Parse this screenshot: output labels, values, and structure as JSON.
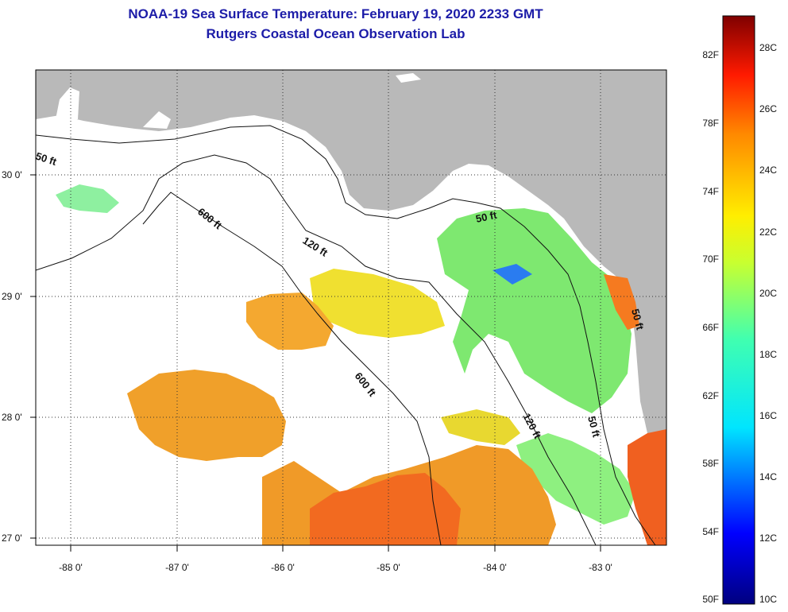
{
  "title": "NOAA-19 Sea Surface Temperature:  February 19, 2020 2233 GMT",
  "subtitle": "Rutgers Coastal Ocean Observation Lab",
  "axes": {
    "x_ticks": [
      "-88 0'",
      "-87 0'",
      "-86 0'",
      "-85 0'",
      "-84 0'",
      "-83 0'"
    ],
    "y_ticks": [
      "30 0'",
      "29 0'",
      "28 0'",
      "27 0'"
    ]
  },
  "depth_contours": [
    "50 ft",
    "600 ft",
    "120 ft",
    "50 ft",
    "600 ft",
    "120 ft",
    "50 ft",
    "50 ft"
  ],
  "colorbar": {
    "fahrenheit": [
      "82F",
      "78F",
      "74F",
      "70F",
      "66F",
      "62F",
      "58F",
      "54F",
      "50F"
    ],
    "celsius": [
      "28C",
      "26C",
      "24C",
      "22C",
      "20C",
      "18C",
      "16C",
      "14C",
      "12C",
      "10C"
    ]
  },
  "colors": {
    "land": "#b9b9b9",
    "cloud": "#ffffff",
    "title": "#1c1ca8"
  }
}
